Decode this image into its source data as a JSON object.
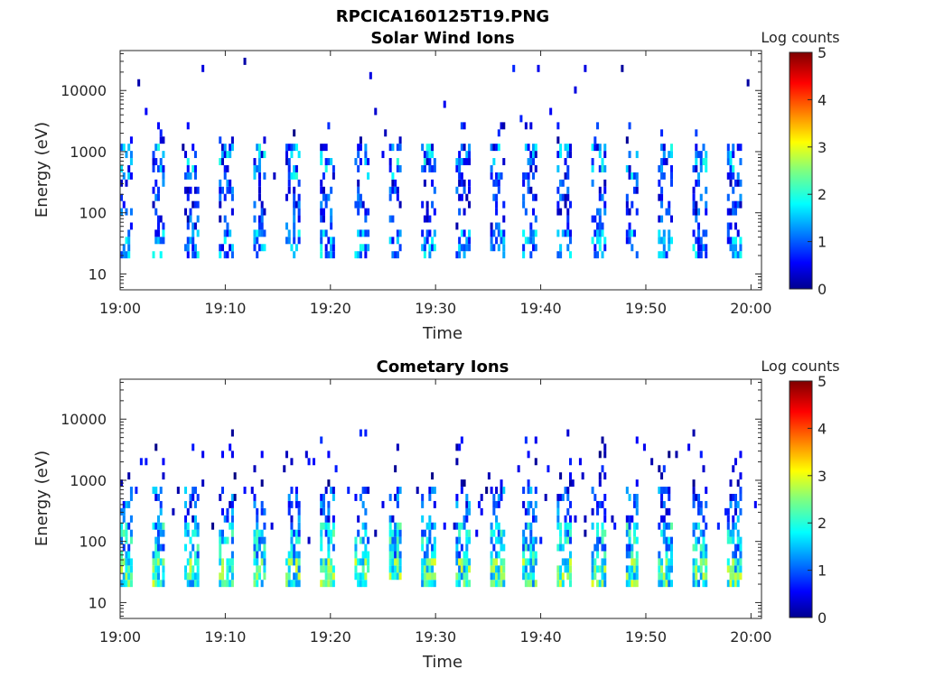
{
  "figure": {
    "title": "RPCICA160125T19.PNG"
  },
  "chart_data": [
    {
      "type": "heatmap",
      "title": "Solar Wind Ions",
      "xlabel": "Time",
      "ylabel": "Energy (eV)",
      "yscale": "log",
      "ylim": [
        5.5,
        45000
      ],
      "xlim": [
        "19:00",
        "20:01"
      ],
      "x_ticks": [
        "19:00",
        "19:10",
        "19:20",
        "19:30",
        "19:40",
        "19:50",
        "20:00"
      ],
      "y_ticks": [
        "10",
        "100",
        "1000",
        "10000"
      ],
      "colorbar": {
        "label": "Log counts",
        "range": [
          0,
          5
        ],
        "ticks": [
          "0",
          "1",
          "2",
          "3",
          "4",
          "5"
        ],
        "colormap": "jet"
      },
      "pattern": "sweep bursts every ~3.2 min; flux between ~20 eV and ~2 keV; peak log counts ~3 near 19:17, mostly 0-2"
    },
    {
      "type": "heatmap",
      "title": "Cometary Ions",
      "xlabel": "Time",
      "ylabel": "Energy (eV)",
      "yscale": "log",
      "ylim": [
        5.5,
        45000
      ],
      "xlim": [
        "19:00",
        "20:01"
      ],
      "x_ticks": [
        "19:00",
        "19:10",
        "19:20",
        "19:30",
        "19:40",
        "19:50",
        "20:00"
      ],
      "y_ticks": [
        "10",
        "100",
        "1000",
        "10000"
      ],
      "colorbar": {
        "label": "Log counts",
        "range": [
          0,
          5
        ],
        "ticks": [
          "0",
          "1",
          "2",
          "3",
          "4",
          "5"
        ],
        "colormap": "jet"
      },
      "pattern": "sweep bursts every ~3.2 min; strongest flux 20-50 eV with log counts up to ~3; scattered counts up to ~5 keV"
    }
  ],
  "colors": {
    "axis": "#262626",
    "background": "#ffffff"
  }
}
